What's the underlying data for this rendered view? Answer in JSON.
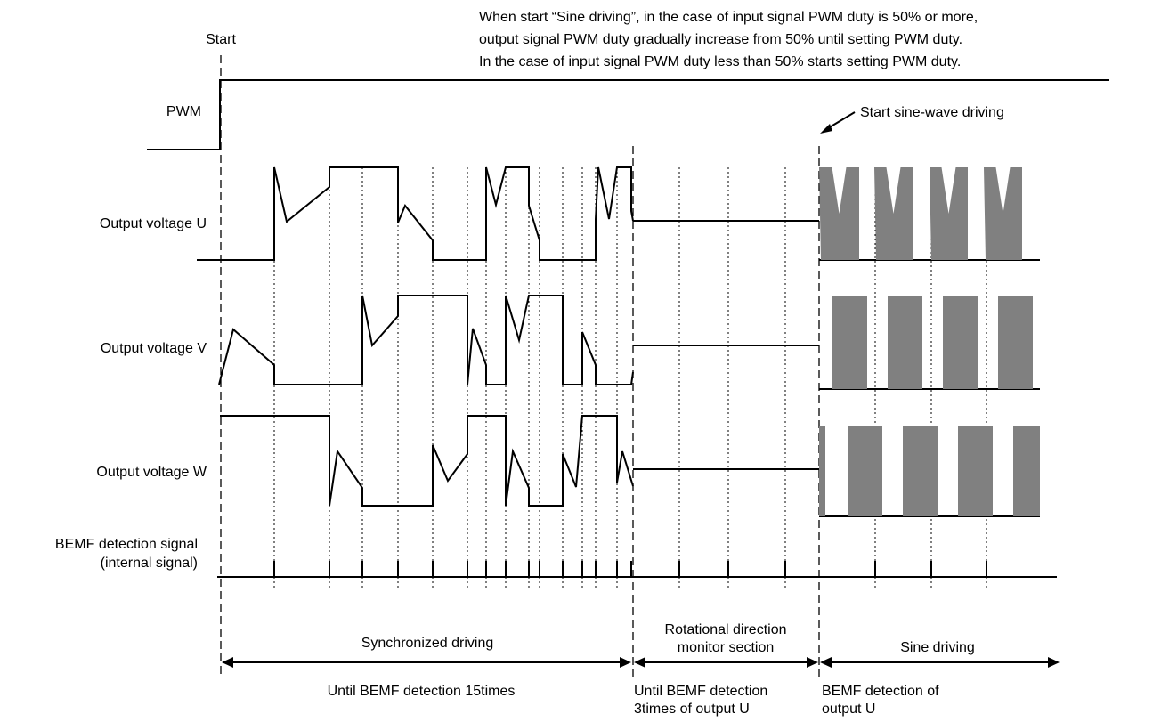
{
  "note": {
    "line1": "When start “Sine driving”, in the case of input signal PWM duty is 50% or more,",
    "line2": "output signal PWM duty gradually increase from 50% until setting PWM duty.",
    "line3": "In the case of input signal PWM duty less than 50% starts setting PWM duty."
  },
  "start_label": "Start",
  "sine_start_label": "Start sine-wave driving",
  "signals": {
    "pwm": "PWM",
    "u": "Output voltage U",
    "v": "Output voltage V",
    "w": "Output voltage W",
    "bemf_line1": "BEMF detection signal",
    "bemf_line2": "(internal   signal)"
  },
  "sections": {
    "sync": "Synchronized driving",
    "monitor_line1": "Rotational direction",
    "monitor_line2": "monitor section",
    "sine": "Sine driving"
  },
  "conditions": {
    "sync": "Until BEMF detection 15times",
    "monitor_line1": "Until BEMF detection",
    "monitor_line2": "3times of output U",
    "sine_line1": "BEMF   detection   of",
    "sine_line2": "output U"
  },
  "colors": {
    "line": "#000000",
    "sine_fill": "#808080",
    "background": "#ffffff"
  }
}
